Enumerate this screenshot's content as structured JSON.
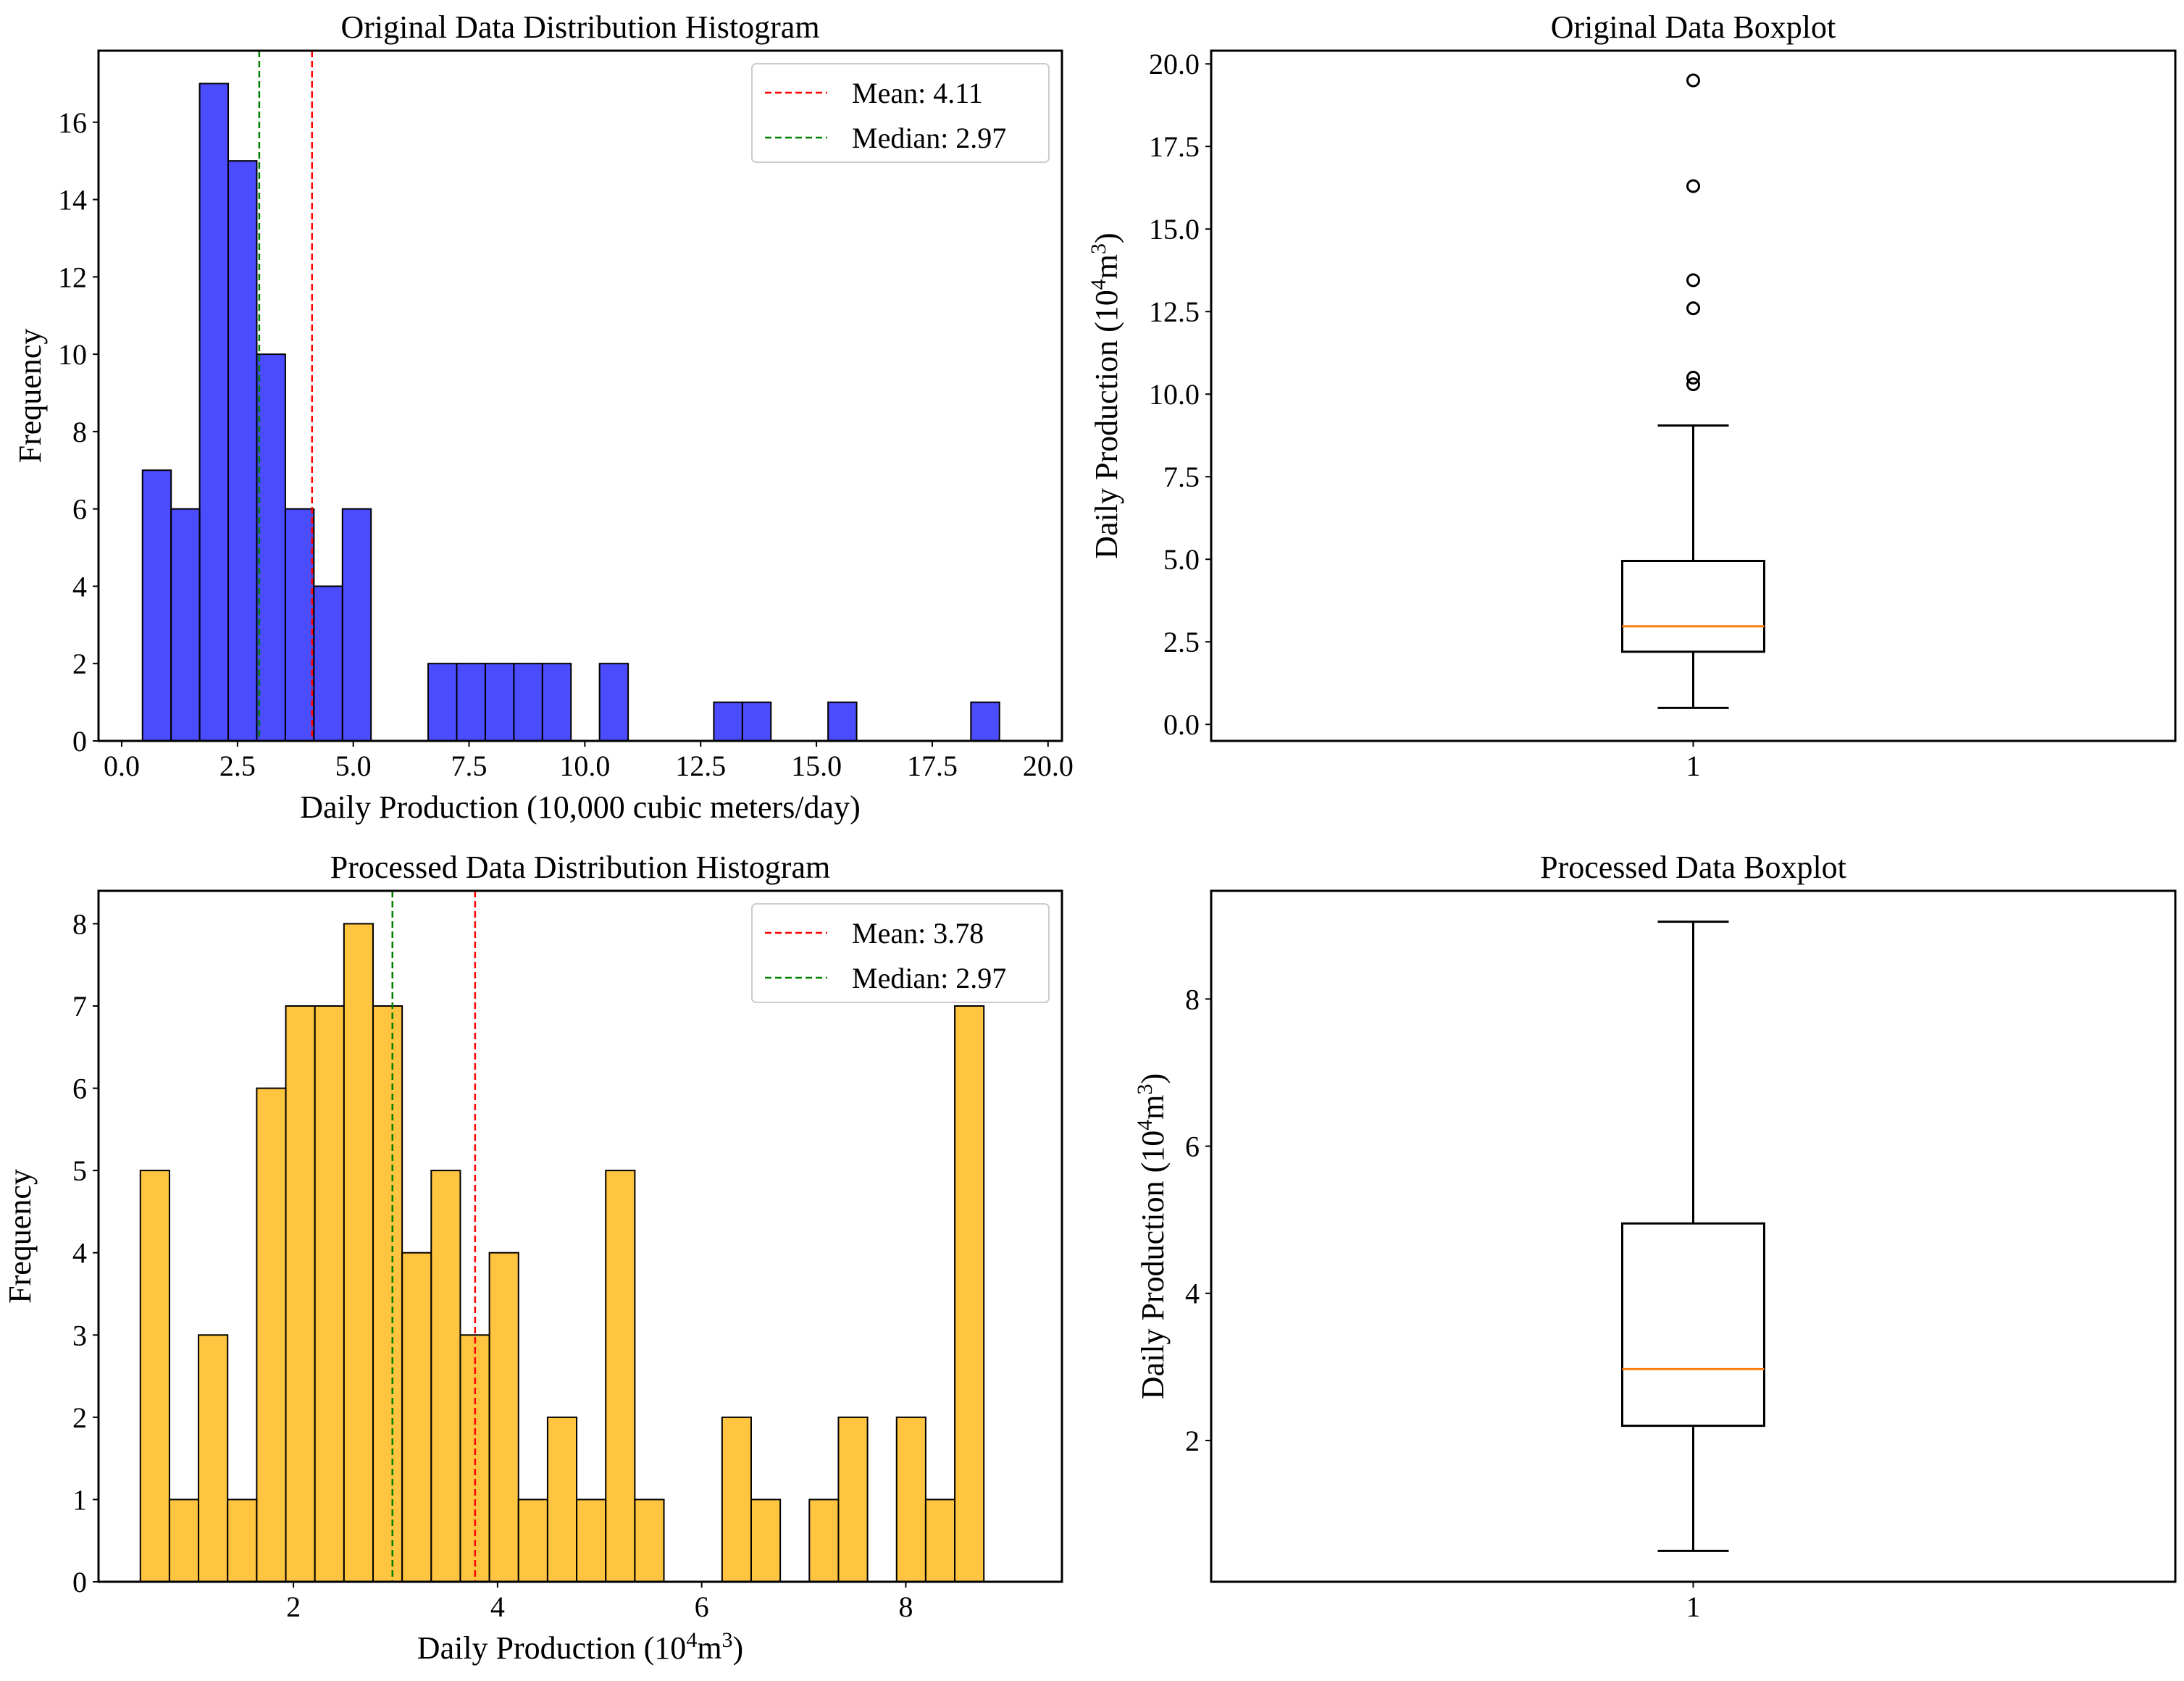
{
  "chart_data": [
    {
      "id": "original-hist",
      "type": "bar",
      "subtype": "histogram",
      "title": "Original Data Distribution Histogram",
      "xlabel": "Daily Production (10,000 cubic meters/day)",
      "ylabel": "Frequency",
      "xlim": [
        -0.5,
        20.3
      ],
      "ylim": [
        0,
        17.85
      ],
      "xticks": [
        0.0,
        2.5,
        5.0,
        7.5,
        10.0,
        12.5,
        15.0,
        17.5,
        20.0
      ],
      "xtick_labels": [
        "0.0",
        "2.5",
        "5.0",
        "7.5",
        "10.0",
        "12.5",
        "15.0",
        "17.5",
        "20.0"
      ],
      "yticks": [
        0,
        2,
        4,
        6,
        8,
        10,
        12,
        14,
        16
      ],
      "ytick_labels": [
        "0",
        "2",
        "4",
        "6",
        "8",
        "10",
        "12",
        "14",
        "16"
      ],
      "bar_color": "#0000ff",
      "bar_alpha": 0.7,
      "bin_start": 0.45,
      "bin_width": 0.6167,
      "values": [
        7,
        6,
        17,
        15,
        10,
        6,
        4,
        6,
        0,
        0,
        2,
        2,
        2,
        2,
        2,
        0,
        2,
        0,
        0,
        0,
        1,
        1,
        0,
        0,
        1,
        0,
        0,
        0,
        0,
        1
      ],
      "vlines": [
        {
          "name": "mean",
          "x": 4.11,
          "color": "#ff0000"
        },
        {
          "name": "median",
          "x": 2.97,
          "color": "#008000"
        }
      ],
      "legend_position": "upper right",
      "legend": [
        {
          "label": "Mean: 4.11",
          "color": "#ff0000"
        },
        {
          "label": "Median: 2.97",
          "color": "#008000"
        }
      ]
    },
    {
      "id": "original-box",
      "type": "boxplot",
      "title": "Original Data Boxplot",
      "xlabel": "",
      "ylabel": "Daily Production (10⁴m³)",
      "ylim": [
        -0.5,
        20.4
      ],
      "yticks": [
        0.0,
        2.5,
        5.0,
        7.5,
        10.0,
        12.5,
        15.0,
        17.5,
        20.0
      ],
      "ytick_labels": [
        "0.0",
        "2.5",
        "5.0",
        "7.5",
        "10.0",
        "12.5",
        "15.0",
        "17.5",
        "20.0"
      ],
      "xtick_labels": [
        "1"
      ],
      "whisker_low": 0.5,
      "q1": 2.2,
      "median": 2.97,
      "q3": 4.95,
      "whisker_high": 9.05,
      "outliers": [
        10.3,
        10.5,
        12.6,
        13.45,
        16.3,
        19.5
      ],
      "median_color": "#ff7f0e"
    },
    {
      "id": "processed-hist",
      "type": "bar",
      "subtype": "histogram",
      "title": "Processed Data Distribution Histogram",
      "xlabel": "Daily Production (10⁴m³)",
      "ylabel": "Frequency",
      "xlim": [
        0.09,
        9.53
      ],
      "ylim": [
        0,
        8.4
      ],
      "xticks": [
        2,
        4,
        6,
        8
      ],
      "xtick_labels": [
        "2",
        "4",
        "6",
        "8"
      ],
      "yticks": [
        0,
        1,
        2,
        3,
        4,
        5,
        6,
        7,
        8
      ],
      "ytick_labels": [
        "0",
        "1",
        "2",
        "3",
        "4",
        "5",
        "6",
        "7",
        "8"
      ],
      "bar_color": "#ffb000",
      "bar_alpha": 0.75,
      "bin_start": 0.5,
      "bin_width": 0.285,
      "values": [
        5,
        1,
        3,
        1,
        6,
        7,
        7,
        8,
        7,
        4,
        5,
        3,
        4,
        1,
        2,
        1,
        5,
        1,
        0,
        0,
        2,
        1,
        0,
        1,
        2,
        0,
        2,
        1,
        7
      ],
      "vlines": [
        {
          "name": "mean",
          "x": 3.78,
          "color": "#ff0000"
        },
        {
          "name": "median",
          "x": 2.97,
          "color": "#008000"
        }
      ],
      "legend_position": "upper right",
      "legend": [
        {
          "label": "Mean: 3.78",
          "color": "#ff0000"
        },
        {
          "label": "Median: 2.97",
          "color": "#008000"
        }
      ]
    },
    {
      "id": "processed-box",
      "type": "boxplot",
      "title": "Processed Data Boxplot",
      "xlabel": "",
      "ylabel": "Daily Production (10⁴m³)",
      "ylim": [
        0.08,
        9.47
      ],
      "yticks": [
        2,
        4,
        6,
        8
      ],
      "ytick_labels": [
        "2",
        "4",
        "6",
        "8"
      ],
      "xtick_labels": [
        "1"
      ],
      "whisker_low": 0.5,
      "q1": 2.2,
      "median": 2.97,
      "q3": 4.95,
      "whisker_high": 9.05,
      "outliers": [],
      "median_color": "#ff7f0e"
    }
  ]
}
